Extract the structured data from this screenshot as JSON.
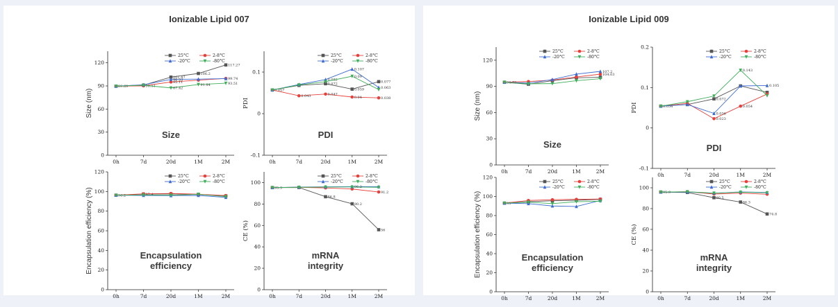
{
  "panels": [
    {
      "title": "Ionizable Lipid 007"
    },
    {
      "title": "Ionizable Lipid 009"
    }
  ],
  "series_colors": {
    "25C": "#555555",
    "2-8C": "#e6403b",
    "-20C": "#3d6cd1",
    "-80C": "#3fae5a"
  },
  "legend_labels": [
    "25°C",
    "2-8°C",
    "-20°C",
    "-80°C"
  ],
  "chart_data": [
    {
      "id": "l007-size",
      "type": "line",
      "panel": 0,
      "caption": "Size",
      "ylabel": "Size (nm)",
      "categories": [
        "0h",
        "7d",
        "20d",
        "1M",
        "2M"
      ],
      "ylim": [
        0,
        135
      ],
      "yticks": [
        0,
        30,
        60,
        90,
        120
      ],
      "series": [
        {
          "name": "25°C",
          "values": [
            89.69,
            91.12,
            101.47,
            106.2,
            117.27
          ],
          "labels": [
            "89.69",
            "",
            "101.47",
            "106.2",
            "117.27"
          ]
        },
        {
          "name": "2-8°C",
          "values": [
            89.69,
            90.11,
            95.11,
            97.5,
            99.74
          ],
          "labels": [
            "",
            "90.11",
            "95.11",
            "",
            "99.74"
          ]
        },
        {
          "name": "-20°C",
          "values": [
            89.69,
            91.5,
            98.53,
            98.8,
            99.5
          ],
          "labels": [
            "",
            "",
            "98.53",
            "",
            ""
          ]
        },
        {
          "name": "-80°C",
          "values": [
            89.69,
            90.9,
            87.42,
            91.84,
            93.51
          ],
          "labels": [
            "",
            "",
            "87.42",
            "91.84",
            "93.51"
          ]
        }
      ]
    },
    {
      "id": "l007-pdi",
      "type": "line",
      "panel": 0,
      "caption": "PDI",
      "ylabel": "PDI",
      "categories": [
        "0h",
        "7d",
        "20d",
        "1M",
        "2M"
      ],
      "ylim": [
        -0.1,
        0.15
      ],
      "yticks": [
        -0.1,
        0.0,
        0.1
      ],
      "series": [
        {
          "name": "25°C",
          "values": [
            0.057,
            0.068,
            0.072,
            0.059,
            0.077
          ],
          "labels": [
            "0.057",
            "",
            "0.072",
            "0.059",
            "0.077"
          ]
        },
        {
          "name": "2-8°C",
          "values": [
            0.057,
            0.043,
            0.047,
            0.04,
            0.038
          ],
          "labels": [
            "",
            "0.043",
            "0.047",
            "0.04",
            "0.038"
          ]
        },
        {
          "name": "-20°C",
          "values": [
            0.057,
            0.07,
            0.082,
            0.107,
            0.063
          ],
          "labels": [
            "",
            "",
            "0.082",
            "0.107",
            "0.063"
          ]
        },
        {
          "name": "-80°C",
          "values": [
            0.057,
            0.069,
            0.077,
            0.09,
            0.058
          ],
          "labels": [
            "",
            "",
            "",
            "0.09",
            ""
          ]
        }
      ]
    },
    {
      "id": "l007-ee",
      "type": "line",
      "panel": 0,
      "caption": "Encapsulation efficiency",
      "ylabel": "Encapsulation efficiency (%)",
      "categories": [
        "0h",
        "7d",
        "20d",
        "1M",
        "2M"
      ],
      "ylim": [
        0,
        120
      ],
      "yticks": [
        0,
        20,
        40,
        60,
        80,
        100,
        120
      ],
      "series": [
        {
          "name": "25°C",
          "values": [
            96.2,
            97.4,
            97.5,
            97.0,
            95.5
          ],
          "labels": [
            "96.2",
            "97.4",
            "",
            "",
            ""
          ]
        },
        {
          "name": "2-8°C",
          "values": [
            96.2,
            97.6,
            98.0,
            97.3,
            95.9
          ],
          "labels": [
            "",
            "",
            "",
            "",
            ""
          ]
        },
        {
          "name": "-20°C",
          "values": [
            96.2,
            96.0,
            95.8,
            96.0,
            94.0
          ],
          "labels": [
            "",
            "",
            "",
            "",
            ""
          ]
        },
        {
          "name": "-80°C",
          "values": [
            96.2,
            96.5,
            96.2,
            97.2,
            94.8
          ],
          "labels": [
            "",
            "",
            "",
            "",
            ""
          ]
        }
      ]
    },
    {
      "id": "l007-integrity",
      "type": "line",
      "panel": 0,
      "caption": "mRNA integrity",
      "ylabel": "CE (%)",
      "categories": [
        "0h",
        "7d",
        "20d",
        "1M",
        "2M"
      ],
      "ylim": [
        0,
        110
      ],
      "yticks": [
        0,
        20,
        40,
        60,
        80,
        100
      ],
      "series": [
        {
          "name": "25°C",
          "values": [
            95.3,
            95.4,
            86.8,
            80.2,
            56.0
          ],
          "labels": [
            "95.3",
            "",
            "86.8",
            "80.2",
            "56"
          ]
        },
        {
          "name": "2-8°C",
          "values": [
            95.3,
            95.6,
            95.0,
            94.0,
            91.2
          ],
          "labels": [
            "",
            "",
            "",
            "",
            "91.2"
          ]
        },
        {
          "name": "-20°C",
          "values": [
            95.3,
            95.8,
            96.0,
            96.2,
            96.2
          ],
          "labels": [
            "",
            "",
            "",
            "96.2",
            ""
          ]
        },
        {
          "name": "-80°C",
          "values": [
            95.3,
            95.6,
            95.8,
            95.9,
            95.6
          ],
          "labels": [
            "",
            "",
            "",
            "",
            ""
          ]
        }
      ]
    },
    {
      "id": "l009-size",
      "type": "line",
      "panel": 1,
      "caption": "Size",
      "ylabel": "Size (nm)",
      "categories": [
        "0h",
        "7d",
        "20d",
        "1M",
        "2M"
      ],
      "ylim": [
        0,
        135
      ],
      "yticks": [
        0,
        30,
        60,
        90,
        120
      ],
      "series": [
        {
          "name": "25°C",
          "values": [
            94.73,
            92.5,
            96.5,
            99.8,
            100.5
          ],
          "labels": [
            "94.73",
            "",
            "",
            "",
            ""
          ]
        },
        {
          "name": "2-8°C",
          "values": [
            94.73,
            95.6,
            97.2,
            100.8,
            104.03
          ],
          "labels": [
            "",
            "",
            "",
            "",
            "104.03"
          ]
        },
        {
          "name": "-20°C",
          "values": [
            94.73,
            93.8,
            97.8,
            104.1,
            107.2
          ],
          "labels": [
            "",
            "",
            "",
            "",
            "107.2"
          ]
        },
        {
          "name": "-80°C",
          "values": [
            94.73,
            93.0,
            93.2,
            96.5,
            98.8
          ],
          "labels": [
            "",
            "",
            "",
            "",
            ""
          ]
        }
      ]
    },
    {
      "id": "l009-pdi",
      "type": "line",
      "panel": 1,
      "caption": "PDI",
      "ylabel": "PDI",
      "categories": [
        "0h",
        "7d",
        "20d",
        "1M",
        "2M"
      ],
      "ylim": [
        -0.1,
        0.2
      ],
      "yticks": [
        -0.1,
        0.0,
        0.1,
        0.2
      ],
      "series": [
        {
          "name": "25°C",
          "values": [
            0.054,
            0.058,
            0.072,
            0.104,
            0.088
          ],
          "labels": [
            "0.054",
            "",
            "0.072",
            "",
            ""
          ]
        },
        {
          "name": "2-8°C",
          "values": [
            0.054,
            0.061,
            0.023,
            0.054,
            0.084
          ],
          "labels": [
            "",
            "",
            "0.023",
            "0.054",
            ""
          ]
        },
        {
          "name": "-20°C",
          "values": [
            0.054,
            0.058,
            0.036,
            0.104,
            0.105
          ],
          "labels": [
            "",
            "",
            "0.036",
            "",
            "0.105"
          ]
        },
        {
          "name": "-80°C",
          "values": [
            0.054,
            0.065,
            0.079,
            0.143,
            0.08
          ],
          "labels": [
            "",
            "",
            "",
            "0.143",
            ""
          ]
        }
      ]
    },
    {
      "id": "l009-ee",
      "type": "line",
      "panel": 1,
      "caption": "Encapsulation efficiency",
      "ylabel": "Encapsulation efficiency (%)",
      "categories": [
        "0h",
        "7d",
        "20d",
        "1M",
        "2M"
      ],
      "ylim": [
        0,
        120
      ],
      "yticks": [
        0,
        20,
        40,
        60,
        80,
        100,
        120
      ],
      "series": [
        {
          "name": "25°C",
          "values": [
            93.0,
            94.5,
            95.5,
            96.0,
            97.0
          ],
          "labels": [
            "93",
            "",
            "",
            "",
            ""
          ]
        },
        {
          "name": "2-8°C",
          "values": [
            93.0,
            95.8,
            96.6,
            97.0,
            97.3
          ],
          "labels": [
            "",
            "",
            "",
            "",
            ""
          ]
        },
        {
          "name": "-20°C",
          "values": [
            93.0,
            92.5,
            90.0,
            89.5,
            95.8
          ],
          "labels": [
            "",
            "",
            "",
            "",
            ""
          ]
        },
        {
          "name": "-80°C",
          "values": [
            93.0,
            94.0,
            92.5,
            94.5,
            95.0
          ],
          "labels": [
            "",
            "",
            "",
            "",
            ""
          ]
        }
      ]
    },
    {
      "id": "l009-integrity",
      "type": "line",
      "panel": 1,
      "caption": "mRNA integrity",
      "ylabel": "CE (%)",
      "categories": [
        "0h",
        "7d",
        "20d",
        "1M",
        "2M"
      ],
      "ylim": [
        0,
        110
      ],
      "yticks": [
        0,
        20,
        40,
        60,
        80,
        100
      ],
      "series": [
        {
          "name": "25°C",
          "values": [
            95.9,
            95.5,
            90.5,
            86.3,
            74.8
          ],
          "labels": [
            "95.9",
            "",
            "90.5",
            "86.3",
            "74.8"
          ]
        },
        {
          "name": "2-8°C",
          "values": [
            95.9,
            96.2,
            94.0,
            94.9,
            93.8
          ],
          "labels": [
            "",
            "",
            "",
            "",
            ""
          ]
        },
        {
          "name": "-20°C",
          "values": [
            95.9,
            96.0,
            94.9,
            96.0,
            95.5
          ],
          "labels": [
            "",
            "",
            "",
            "",
            ""
          ]
        },
        {
          "name": "-80°C",
          "values": [
            95.9,
            96.2,
            94.9,
            95.8,
            95.2
          ],
          "labels": [
            "",
            "",
            "",
            "",
            ""
          ]
        }
      ]
    }
  ]
}
